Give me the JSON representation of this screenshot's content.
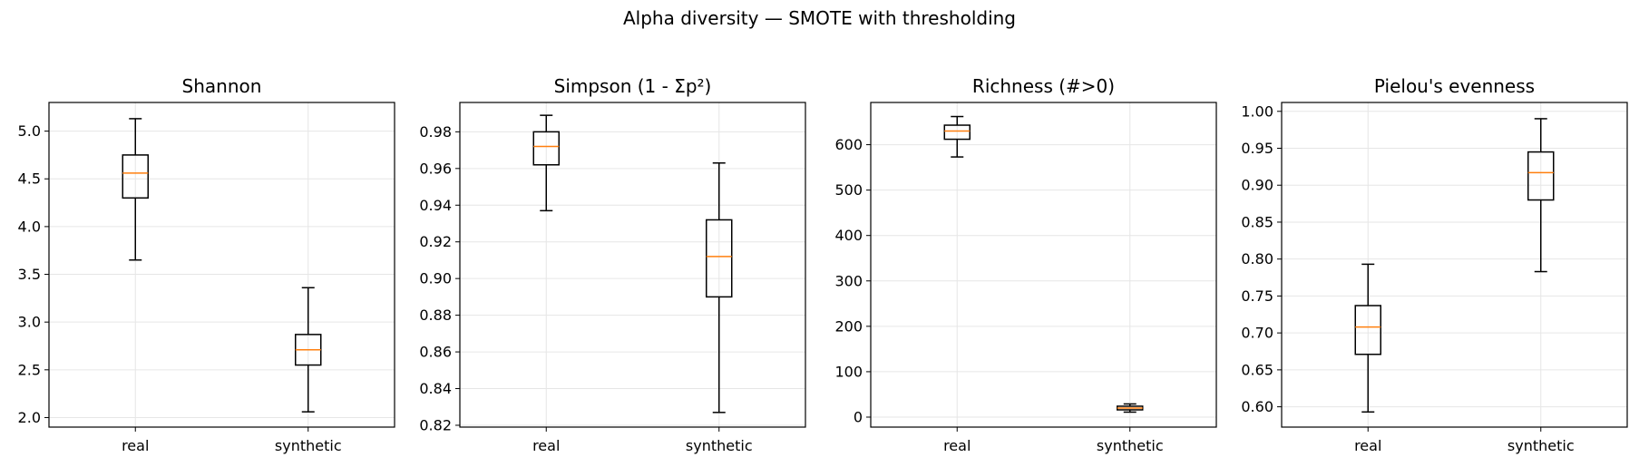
{
  "figure": {
    "suptitle": "Alpha diversity — SMOTE with thresholding"
  },
  "colors": {
    "box": "#000000",
    "median": "#ff7f0e",
    "grid": "#e6e6e6",
    "background": "#ffffff"
  },
  "chart_data": [
    {
      "type": "boxplot",
      "title": "Shannon",
      "categories": [
        "real",
        "synthetic"
      ],
      "ylim": [
        1.9,
        5.3
      ],
      "yticks": [
        2.0,
        2.5,
        3.0,
        3.5,
        4.0,
        4.5,
        5.0
      ],
      "ytick_labels": [
        "2.0",
        "2.5",
        "3.0",
        "3.5",
        "4.0",
        "4.5",
        "5.0"
      ],
      "boxes": [
        {
          "label": "real",
          "whisker_low": 3.65,
          "q1": 4.3,
          "median": 4.56,
          "q3": 4.75,
          "whisker_high": 5.13
        },
        {
          "label": "synthetic",
          "whisker_low": 2.06,
          "q1": 2.55,
          "median": 2.71,
          "q3": 2.87,
          "whisker_high": 3.36
        }
      ],
      "grid": true
    },
    {
      "type": "boxplot",
      "title": "Simpson (1 - Σp²)",
      "categories": [
        "real",
        "synthetic"
      ],
      "ylim": [
        0.819,
        0.996
      ],
      "yticks": [
        0.82,
        0.84,
        0.86,
        0.88,
        0.9,
        0.92,
        0.94,
        0.96,
        0.98
      ],
      "ytick_labels": [
        "0.82",
        "0.84",
        "0.86",
        "0.88",
        "0.90",
        "0.92",
        "0.94",
        "0.96",
        "0.98"
      ],
      "boxes": [
        {
          "label": "real",
          "whisker_low": 0.937,
          "q1": 0.962,
          "median": 0.972,
          "q3": 0.98,
          "whisker_high": 0.989
        },
        {
          "label": "synthetic",
          "whisker_low": 0.827,
          "q1": 0.89,
          "median": 0.912,
          "q3": 0.932,
          "whisker_high": 0.963
        }
      ],
      "grid": true
    },
    {
      "type": "boxplot",
      "title": "Richness (#>0)",
      "categories": [
        "real",
        "synthetic"
      ],
      "ylim": [
        -22,
        693
      ],
      "yticks": [
        0,
        100,
        200,
        300,
        400,
        500,
        600
      ],
      "ytick_labels": [
        "0",
        "100",
        "200",
        "300",
        "400",
        "500",
        "600"
      ],
      "boxes": [
        {
          "label": "real",
          "whisker_low": 573,
          "q1": 612,
          "median": 630,
          "q3": 643,
          "whisker_high": 662
        },
        {
          "label": "synthetic",
          "whisker_low": 11,
          "q1": 16,
          "median": 20,
          "q3": 24,
          "whisker_high": 29
        }
      ],
      "grid": true
    },
    {
      "type": "boxplot",
      "title": "Pielou's evenness",
      "categories": [
        "real",
        "synthetic"
      ],
      "ylim": [
        0.5725,
        1.012
      ],
      "yticks": [
        0.6,
        0.65,
        0.7,
        0.75,
        0.8,
        0.85,
        0.9,
        0.95,
        1.0
      ],
      "ytick_labels": [
        "0.60",
        "0.65",
        "0.70",
        "0.75",
        "0.80",
        "0.85",
        "0.90",
        "0.95",
        "1.00"
      ],
      "boxes": [
        {
          "label": "real",
          "whisker_low": 0.593,
          "q1": 0.671,
          "median": 0.708,
          "q3": 0.737,
          "whisker_high": 0.793
        },
        {
          "label": "synthetic",
          "whisker_low": 0.783,
          "q1": 0.88,
          "median": 0.917,
          "q3": 0.945,
          "whisker_high": 0.99
        }
      ],
      "grid": true
    }
  ]
}
